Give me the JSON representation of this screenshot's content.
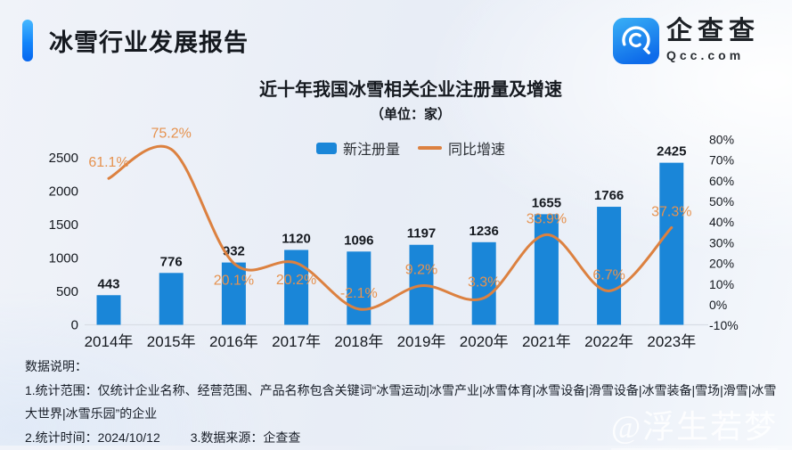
{
  "header": {
    "title": "冰雪行业发展报告"
  },
  "logo": {
    "name": "企查查",
    "domain": "Qcc.com"
  },
  "chart": {
    "title": "近十年我国冰雪相关企业注册量及增速",
    "subtitle": "（单位：家）",
    "legend": [
      {
        "label": "新注册量",
        "type": "bar"
      },
      {
        "label": "同比增速",
        "type": "line"
      }
    ]
  },
  "chart_data": {
    "type": "bar+line",
    "title": "近十年我国冰雪相关企业注册量及增速",
    "subtitle": "（单位：家）",
    "categories": [
      "2014年",
      "2015年",
      "2016年",
      "2017年",
      "2018年",
      "2019年",
      "2020年",
      "2021年",
      "2022年",
      "2023年"
    ],
    "series": [
      {
        "name": "新注册量",
        "type": "bar",
        "axis": "left",
        "color": "#1a86d8",
        "values": [
          443,
          776,
          932,
          1120,
          1096,
          1197,
          1236,
          1655,
          1766,
          2425
        ],
        "value_labels": [
          "443",
          "776",
          "932",
          "1120",
          "1096",
          "1197",
          "1236",
          "1655",
          "1766",
          "2425"
        ]
      },
      {
        "name": "同比增速",
        "type": "line",
        "axis": "right",
        "color": "#dc8140",
        "label_color": "#e6924f",
        "values": [
          61.1,
          75.2,
          20.1,
          20.2,
          -2.1,
          9.2,
          3.3,
          33.9,
          6.7,
          37.3
        ],
        "point_labels": [
          "61.1%",
          "75.2%",
          "20.1%",
          "20.2%",
          "-2.1%",
          "9.2%",
          "3.3%",
          "33.9%",
          "6.7%",
          "37.3%"
        ],
        "label_below_indices": [
          2,
          3
        ],
        "smooth": true
      }
    ],
    "left_axis": {
      "range": [
        0,
        2500
      ],
      "ticks": [
        0,
        500,
        1000,
        1500,
        2000,
        2500
      ],
      "tick_labels": [
        "0",
        "500",
        "1000",
        "1500",
        "2000",
        "2500"
      ]
    },
    "right_axis": {
      "range": [
        -10,
        80
      ],
      "ticks": [
        80,
        70,
        60,
        50,
        40,
        30,
        20,
        10,
        0,
        -10
      ],
      "tick_labels": [
        "80%",
        "70%",
        "60%",
        "50%",
        "40%",
        "30%",
        "20%",
        "10%",
        "0%",
        "-10%"
      ]
    },
    "grid": false,
    "legend_position": "top"
  },
  "notes": {
    "heading": "数据说明：",
    "line1": "1.统计范围：仅统计企业名称、经营范围、产品名称包含关键词“冰雪运动|冰雪产业|冰雪体育|冰雪设备|滑雪设备|冰雪装备|雪场|滑雪|冰雪大世界|冰雪乐园”的企业",
    "line2": "2.统计时间：2024/10/12",
    "line3": "3.数据来源：企查查"
  },
  "watermark": "@浮生若梦",
  "colors": {
    "bar": "#1a86d8",
    "line": "#dc8140",
    "growth_label": "#e6924f",
    "accent_top": "#46b8ff",
    "accent_bottom": "#0666ef",
    "axis_line": "#d8dde5",
    "text_dark": "#15191f"
  }
}
